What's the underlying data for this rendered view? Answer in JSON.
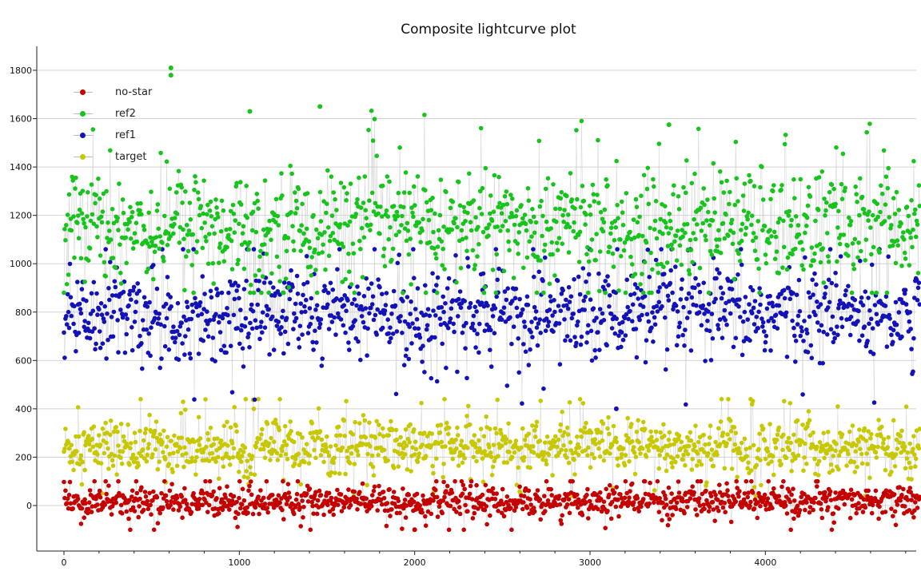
{
  "chart_data": {
    "type": "scatter",
    "title": "Composite lightcurve plot",
    "xlabel": "",
    "ylabel": "",
    "xlim": [
      -150,
      4880
    ],
    "ylim": [
      -190,
      1900
    ],
    "x_ticks": [
      0,
      1000,
      2000,
      3000,
      4000
    ],
    "y_ticks": [
      0,
      200,
      400,
      600,
      800,
      1000,
      1200,
      1400,
      1600,
      1800
    ],
    "grid": "horizontal",
    "legend_position": "top-left",
    "n_points_per_series": 4880,
    "series": [
      {
        "name": "no-star",
        "color": "#c40000",
        "mean": 15,
        "spread": 40,
        "min": -100,
        "max": 140
      },
      {
        "name": "ref2",
        "color": "#16c41c",
        "mean": 1160,
        "spread": 140,
        "min": 880,
        "max": 1810
      },
      {
        "name": "ref1",
        "color": "#1212b8",
        "mean": 790,
        "spread": 120,
        "min": 400,
        "max": 1100
      },
      {
        "name": "target",
        "color": "#c8c800",
        "mean": 240,
        "spread": 70,
        "min": 40,
        "max": 480
      }
    ],
    "notable_points": [
      {
        "series": "ref2",
        "x": 610,
        "y": 1810
      },
      {
        "series": "ref2",
        "x": 610,
        "y": 1780
      },
      {
        "series": "ref2",
        "x": 1060,
        "y": 1630
      },
      {
        "series": "ref2",
        "x": 1460,
        "y": 1650
      },
      {
        "series": "ref2",
        "x": 3450,
        "y": 1575
      },
      {
        "series": "ref1",
        "x": 3150,
        "y": 400
      },
      {
        "series": "no-star",
        "x": 2000,
        "y": -100
      }
    ]
  }
}
